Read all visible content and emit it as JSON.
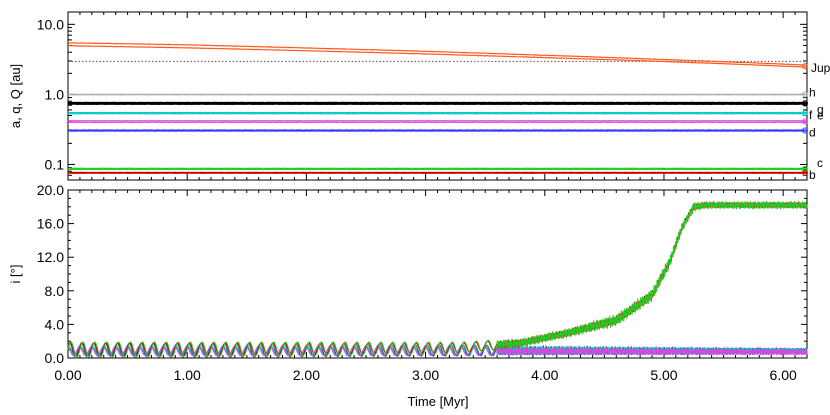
{
  "chart_data": [
    {
      "type": "line",
      "ylabel": "a, q, Q [au]",
      "yscale": "log",
      "ylim": [
        0.06,
        15
      ],
      "xlim": [
        0,
        6.2
      ],
      "yticks": [
        {
          "value": 10,
          "label": "10.0"
        },
        {
          "value": 1,
          "label": "1.0"
        },
        {
          "value": 0.1,
          "label": "0.1"
        }
      ],
      "reference_line": {
        "value": 2.96,
        "style": "dotted",
        "color": "#555555"
      },
      "series": [
        {
          "name": "Jup",
          "color": "#ff5a1f",
          "x": [
            0,
            1,
            2,
            3,
            4,
            5,
            6.2
          ],
          "q": [
            4.95,
            4.62,
            4.2,
            3.78,
            3.35,
            2.95,
            2.45
          ],
          "Q": [
            5.45,
            5.1,
            4.6,
            4.12,
            3.62,
            3.15,
            2.62
          ]
        },
        {
          "name": "h",
          "color": "#aaaaaa",
          "x": [
            0,
            6.2
          ],
          "q": [
            0.99,
            0.99
          ],
          "Q": [
            1.0,
            1.0
          ]
        },
        {
          "name": "g",
          "color": "#000000",
          "x": [
            0,
            6.2
          ],
          "q": [
            0.73,
            0.73
          ],
          "Q": [
            0.76,
            0.76
          ]
        },
        {
          "name": "f",
          "color": "#00c8c8",
          "x": [
            0,
            6.2
          ],
          "q": [
            0.53,
            0.53
          ],
          "Q": [
            0.55,
            0.55
          ]
        },
        {
          "name": "e",
          "color": "#dd44dd",
          "x": [
            0,
            6.2
          ],
          "q": [
            0.4,
            0.4
          ],
          "Q": [
            0.42,
            0.42
          ]
        },
        {
          "name": "d",
          "color": "#3a3aff",
          "x": [
            0,
            6.2
          ],
          "q": [
            0.3,
            0.3
          ],
          "Q": [
            0.31,
            0.31
          ]
        },
        {
          "name": "c",
          "color": "#22cc22",
          "x": [
            0,
            6.2
          ],
          "q": [
            0.085,
            0.085
          ],
          "Q": [
            0.088,
            0.088
          ]
        },
        {
          "name": "b",
          "color": "#cc0000",
          "x": [
            0,
            6.2
          ],
          "q": [
            0.075,
            0.075
          ],
          "Q": [
            0.077,
            0.077
          ]
        }
      ]
    },
    {
      "type": "line",
      "xlabel": "Time [Myr]",
      "ylabel": "i [°]",
      "xlim": [
        0,
        6.2
      ],
      "ylim": [
        0,
        20
      ],
      "xticks": [
        {
          "value": 0,
          "label": "0.00"
        },
        {
          "value": 1,
          "label": "1.00"
        },
        {
          "value": 2,
          "label": "2.00"
        },
        {
          "value": 3,
          "label": "3.00"
        },
        {
          "value": 4,
          "label": "4.00"
        },
        {
          "value": 5,
          "label": "5.00"
        },
        {
          "value": 6,
          "label": "6.00"
        }
      ],
      "yticks": [
        {
          "value": 0,
          "label": "0.0"
        },
        {
          "value": 4,
          "label": "4.0"
        },
        {
          "value": 8,
          "label": "8.0"
        },
        {
          "value": 12,
          "label": "12.0"
        },
        {
          "value": 16,
          "label": "16.0"
        },
        {
          "value": 20,
          "label": "20.0"
        }
      ],
      "oscillation_period_myr": 0.1,
      "series": [
        {
          "color": "#22cc22",
          "x": [
            0,
            3.3,
            3.8,
            4.2,
            4.6,
            4.9,
            5.05,
            5.15,
            5.25,
            5.35,
            6.2
          ],
          "y": [
            1.0,
            1.2,
            1.8,
            3.0,
            4.5,
            7.5,
            11.5,
            15.5,
            18.0,
            18.2,
            18.2
          ],
          "amplitude": [
            0.9,
            0.7,
            0.6,
            0.6,
            0.8,
            0.8,
            0.8,
            0.6,
            0.6,
            0.5,
            0.5
          ]
        },
        {
          "color": "#cc0000",
          "x": [
            0,
            3.3,
            3.8,
            4.2,
            4.6,
            4.9,
            5.05,
            5.15,
            5.25,
            5.35,
            6.2
          ],
          "y": [
            1.0,
            1.2,
            1.8,
            3.0,
            4.5,
            7.5,
            11.5,
            15.5,
            18.0,
            18.2,
            18.2
          ],
          "amplitude": [
            0.8,
            0.6,
            0.5,
            0.5,
            0.6,
            0.6,
            0.6,
            0.5,
            0.5,
            0.4,
            0.4
          ]
        },
        {
          "color": "#555555",
          "x": [
            0,
            4.0,
            6.2
          ],
          "y": [
            0.9,
            0.9,
            0.8
          ],
          "amplitude": [
            0.9,
            0.6,
            0.4
          ]
        },
        {
          "color": "#3a3aff",
          "x": [
            0,
            4.0,
            6.2
          ],
          "y": [
            0.8,
            0.8,
            0.8
          ],
          "amplitude": [
            0.5,
            0.5,
            0.4
          ]
        },
        {
          "color": "#00c8c8",
          "x": [
            0,
            4.0,
            6.2
          ],
          "y": [
            0.9,
            0.9,
            0.8
          ],
          "amplitude": [
            0.6,
            0.6,
            0.4
          ]
        },
        {
          "color": "#dd44dd",
          "x": [
            0,
            4.0,
            6.2
          ],
          "y": [
            0.8,
            0.8,
            0.7
          ],
          "amplitude": [
            0.5,
            0.5,
            0.4
          ]
        }
      ]
    }
  ]
}
